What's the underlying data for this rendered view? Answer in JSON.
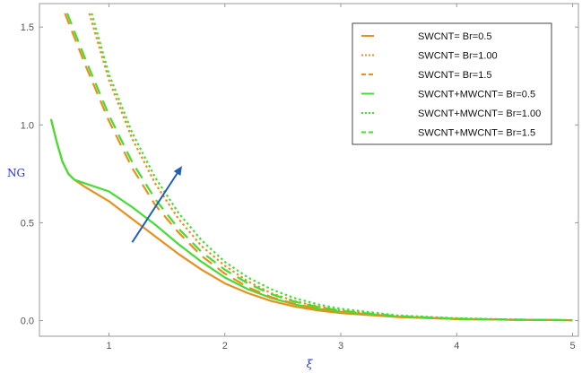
{
  "chart_data": {
    "type": "line",
    "title": "",
    "xlabel": "ξ",
    "ylabel": "NG",
    "xlim": [
      0.4,
      5.05
    ],
    "ylim": [
      -0.08,
      1.62
    ],
    "xticks": [
      1,
      2,
      3,
      4,
      5
    ],
    "yticks": [
      0.0,
      0.5,
      1.0,
      1.5
    ],
    "ytick_labels": [
      "0.0",
      "0.5",
      "1.0",
      "1.5"
    ],
    "legend_position": "top-right",
    "colors": {
      "swcnt": "#e8901e",
      "hybrid": "#44dd33",
      "arrow": "#1f5fb0"
    },
    "series": [
      {
        "name": "SWCNT= Br=0.5",
        "style": "solid",
        "x": [
          0.5,
          0.55,
          0.6,
          0.65,
          0.7,
          0.8,
          1.0,
          1.2,
          1.4,
          1.6,
          1.8,
          2.0,
          2.2,
          2.4,
          2.6,
          2.8,
          3.0,
          3.5,
          4.0,
          4.5,
          5.0
        ],
        "y": [
          1.03,
          0.91,
          0.81,
          0.75,
          0.72,
          0.68,
          0.61,
          0.52,
          0.43,
          0.34,
          0.26,
          0.19,
          0.14,
          0.1,
          0.072,
          0.052,
          0.038,
          0.018,
          0.008,
          0.004,
          0.002
        ]
      },
      {
        "name": "SWCNT= Br=1.00",
        "style": "dotted",
        "x": [
          0.83,
          1.0,
          1.2,
          1.4,
          1.6,
          1.8,
          2.0,
          2.2,
          2.4,
          2.6,
          2.8,
          3.0,
          3.5,
          4.0,
          4.5,
          5.0
        ],
        "y": [
          1.57,
          1.23,
          0.93,
          0.7,
          0.52,
          0.38,
          0.28,
          0.2,
          0.14,
          0.1,
          0.072,
          0.052,
          0.022,
          0.01,
          0.005,
          0.002
        ]
      },
      {
        "name": "SWCNT= Br=1.5",
        "style": "dashed",
        "x": [
          0.62,
          0.8,
          1.0,
          1.2,
          1.4,
          1.6,
          1.8,
          2.0,
          2.2,
          2.4,
          2.6,
          2.8,
          3.0,
          3.5,
          4.0,
          4.5,
          5.0
        ],
        "y": [
          1.57,
          1.3,
          1.02,
          0.78,
          0.59,
          0.45,
          0.33,
          0.24,
          0.17,
          0.12,
          0.086,
          0.061,
          0.044,
          0.019,
          0.008,
          0.004,
          0.002
        ]
      },
      {
        "name": "SWCNT+MWCNT= Br=0.5",
        "style": "solid",
        "x": [
          0.5,
          0.55,
          0.6,
          0.65,
          0.7,
          0.8,
          1.0,
          1.2,
          1.4,
          1.6,
          1.8,
          2.0,
          2.2,
          2.4,
          2.6,
          2.8,
          3.0,
          3.5,
          4.0,
          4.5,
          5.0
        ],
        "y": [
          1.03,
          0.91,
          0.81,
          0.75,
          0.72,
          0.7,
          0.66,
          0.58,
          0.49,
          0.39,
          0.3,
          0.22,
          0.16,
          0.115,
          0.083,
          0.06,
          0.044,
          0.02,
          0.009,
          0.004,
          0.002
        ]
      },
      {
        "name": "SWCNT+MWCNT= Br=1.00",
        "style": "dotted",
        "x": [
          0.85,
          1.0,
          1.2,
          1.4,
          1.6,
          1.8,
          2.0,
          2.2,
          2.4,
          2.6,
          2.8,
          3.0,
          3.5,
          4.0,
          4.5,
          5.0
        ],
        "y": [
          1.57,
          1.26,
          0.96,
          0.73,
          0.55,
          0.41,
          0.3,
          0.22,
          0.16,
          0.115,
          0.083,
          0.06,
          0.026,
          0.012,
          0.005,
          0.002
        ]
      },
      {
        "name": "SWCNT+MWCNT= Br=1.5",
        "style": "dashed",
        "x": [
          0.64,
          0.8,
          1.0,
          1.2,
          1.4,
          1.6,
          1.8,
          2.0,
          2.2,
          2.4,
          2.6,
          2.8,
          3.0,
          3.5,
          4.0,
          4.5,
          5.0
        ],
        "y": [
          1.57,
          1.33,
          1.05,
          0.81,
          0.62,
          0.47,
          0.35,
          0.26,
          0.19,
          0.135,
          0.097,
          0.07,
          0.05,
          0.022,
          0.01,
          0.005,
          0.002
        ]
      }
    ],
    "annotations": [
      {
        "type": "arrow",
        "from": [
          1.2,
          0.4
        ],
        "to": [
          1.63,
          0.79
        ]
      }
    ]
  }
}
